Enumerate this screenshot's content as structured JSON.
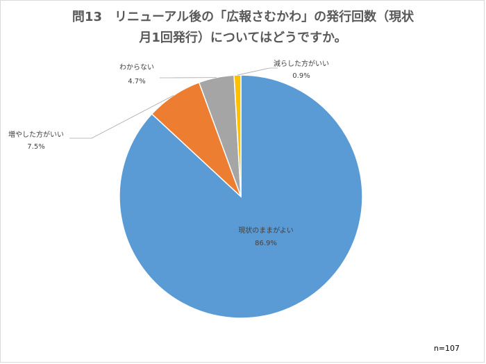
{
  "chart_data": {
    "type": "pie",
    "title_lines": [
      "問13　リニューアル後の「広報さむかわ」の発行回数（現状",
      "月1回発行）についてはどうですか。"
    ],
    "slices": [
      {
        "name": "現状のままがよい",
        "value": 86.9,
        "label": "86.9%",
        "color": "#5b9bd5"
      },
      {
        "name": "増やした方がいい",
        "value": 7.5,
        "label": "7.5%",
        "color": "#ed7d31"
      },
      {
        "name": "わからない",
        "value": 4.7,
        "label": "4.7%",
        "color": "#a5a5a5"
      },
      {
        "name": "減らした方がいい",
        "value": 0.9,
        "label": "0.9%",
        "color": "#ffc000"
      }
    ],
    "start_angle": "top, clockwise, first slice is 現状のままがよい",
    "note": "n=107"
  }
}
